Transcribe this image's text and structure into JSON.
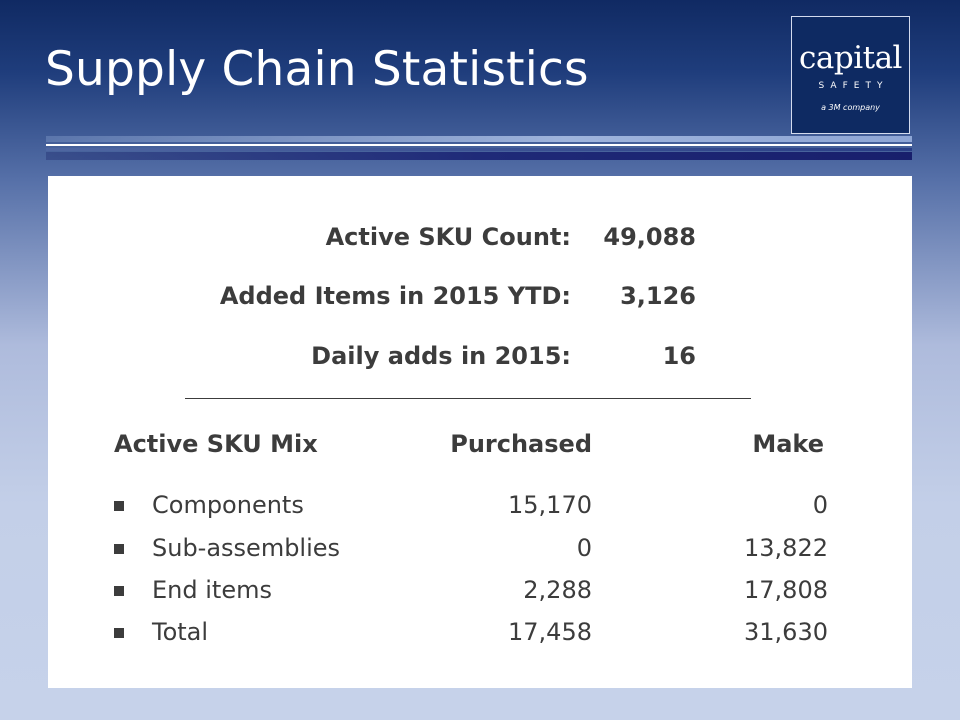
{
  "slide": {
    "title": "Supply Chain Statistics"
  },
  "logo": {
    "word": "capital",
    "sub": "SAFETY",
    "tagline": "a 3M company"
  },
  "stats": [
    {
      "label": "Active SKU Count:",
      "value": "49,088"
    },
    {
      "label": "Added Items in 2015 YTD:",
      "value": "3,126"
    },
    {
      "label": "Daily adds in 2015:",
      "value": "16"
    }
  ],
  "mix": {
    "headers": {
      "category": "Active SKU Mix",
      "purchased": "Purchased",
      "make": "Make"
    },
    "rows": [
      {
        "name": "Components",
        "purchased": "15,170",
        "make": "0"
      },
      {
        "name": "Sub-assemblies",
        "purchased": "0",
        "make": "13,822"
      },
      {
        "name": "End items",
        "purchased": "2,288",
        "make": "17,808"
      },
      {
        "name": "Total",
        "purchased": "17,458",
        "make": "31,630"
      }
    ]
  },
  "colors": {
    "title_text": "#ffffff",
    "logo_bg": "#0e2a62",
    "panel_bg": "#ffffff",
    "body_text": "#3c3c3c"
  }
}
